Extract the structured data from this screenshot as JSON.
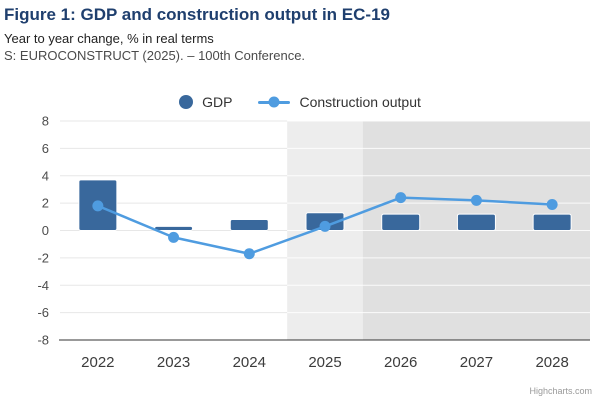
{
  "header": {
    "title": "Figure 1: GDP and construction output in EC-19",
    "subtitle": "Year to year change, % in real terms",
    "source": "S: EUROCONSTRUCT (2025). – 100th Conference."
  },
  "legend": {
    "items": [
      {
        "label": "GDP",
        "marker": "circle",
        "color": "#39689c"
      },
      {
        "label": "Construction output",
        "marker": "line",
        "color": "#4f9ce0"
      }
    ]
  },
  "credits": "Highcharts.com",
  "colors": {
    "title": "#1f3f6e",
    "gdp_bar": "#39689c",
    "construction_line": "#4f9ce0",
    "grid_on_white": "#e7e7e7",
    "grid_on_band": "#ffffff",
    "axis_line": "#333333",
    "band_2025": "#ededed",
    "band_outlook": "#e0e0e0"
  },
  "chart_data": {
    "type": "bar",
    "title": "Figure 1: GDP and construction output in EC-19",
    "subtitle": "Year to year change, % in real terms",
    "categories": [
      "2022",
      "2023",
      "2024",
      "2025",
      "2026",
      "2027",
      "2028"
    ],
    "series": [
      {
        "name": "GDP",
        "type": "bar",
        "color": "#39689c",
        "values": [
          3.7,
          0.3,
          0.8,
          1.3,
          1.2,
          1.2,
          1.2
        ]
      },
      {
        "name": "Construction output",
        "type": "line",
        "color": "#4f9ce0",
        "values": [
          1.8,
          -0.5,
          -1.7,
          0.3,
          2.4,
          2.2,
          1.9
        ]
      }
    ],
    "xlabel": "",
    "ylabel": "",
    "ylim": [
      -8,
      8
    ],
    "ytick_step": 2,
    "grid": true,
    "legend_position": "top",
    "plot_bands": [
      {
        "from_index": 3,
        "to_index": 3,
        "color": "#ededed"
      },
      {
        "from_index": 4,
        "to_index": 6,
        "color": "#e0e0e0"
      }
    ]
  }
}
